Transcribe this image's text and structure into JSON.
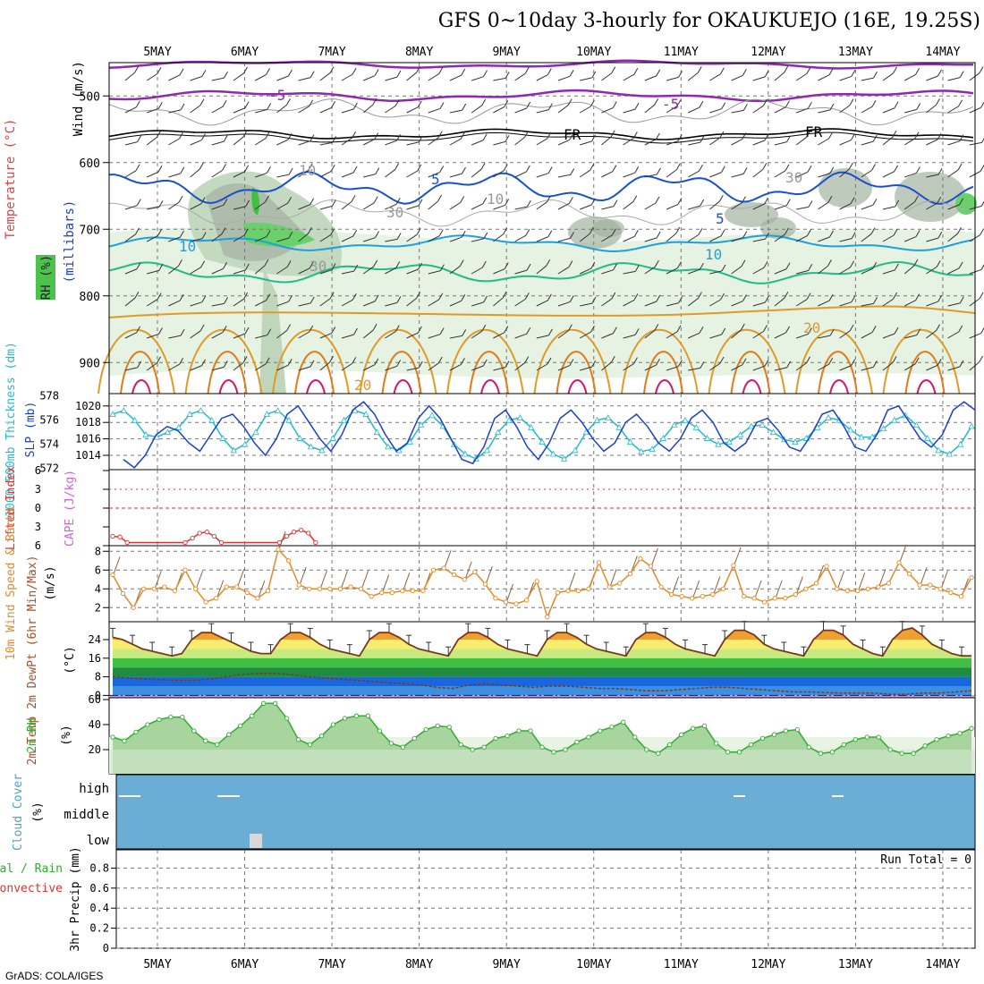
{
  "title": "GFS 0~10day 3-hourly for OKAUKUEJO (16E, 19.25S)",
  "footer": "GrADS: COLA/IGES",
  "colors": {
    "barb": "#333333",
    "freezing": "#000000",
    "cape": "#cc66cc",
    "lifted": "#dd3333",
    "thick": "#22bbcc",
    "slp": "#1a3fd0",
    "wind": "#e08a2a",
    "rh": "#33aa33",
    "cloud": "#6aaed6"
  },
  "days": [
    "5MAY",
    "6MAY",
    "7MAY",
    "8MAY",
    "9MAY",
    "10MAY",
    "11MAY",
    "12MAY",
    "13MAY",
    "14MAY"
  ],
  "panels": {
    "upper": {
      "ylabel_wind": "Wind (m/s)",
      "ylabel_temp": "Temperature (°C)",
      "ylabel_rh": "RH (%)",
      "ylabel_mb": "(millibars)",
      "levels": [
        "500",
        "600",
        "700",
        "800",
        "900"
      ],
      "contour_labels": [
        "-5",
        "-5",
        "FR",
        "FR",
        "5",
        "5",
        "10",
        "10",
        "20",
        "20",
        "10",
        "10",
        "30",
        "30",
        "30"
      ]
    },
    "slp": {
      "ylabel_thick": "1000-500mb Thickness (dm)",
      "ylabel_slp": "SLP (mb)",
      "left_ticks": [
        "578",
        "576",
        "574",
        "572"
      ],
      "right_ticks": [
        "1020",
        "1018",
        "1016",
        "1014"
      ]
    },
    "cape": {
      "ylabel_li": "Lifted Index",
      "ylabel_cape": "CAPE (J/kg)",
      "ticks": [
        "6",
        "3",
        "0",
        "3",
        "6"
      ]
    },
    "wind": {
      "ylabel": "10m Wind Speed & Barbs",
      "unit": "(m/s)",
      "ticks": [
        "8",
        "6",
        "4",
        "2"
      ]
    },
    "temp": {
      "ylabel": "2m Temp 2m DewPt (6hr Min/Max)",
      "unit": "(°C)",
      "ticks": [
        "24",
        "16",
        "8",
        "0"
      ]
    },
    "rh": {
      "ylabel": "2m RH",
      "unit": "(%)",
      "ticks": [
        "60",
        "40",
        "20"
      ]
    },
    "cloud": {
      "ylabel": "Cloud Cover",
      "unit": "(%)",
      "levels": [
        "high",
        "middle",
        "low"
      ]
    },
    "precip": {
      "ylabel": "Total / Rain Convective",
      "ylabel2": "3hr Precip (mm)",
      "run_total": "Run Total = 0",
      "ticks": [
        "0.8",
        "0.6",
        "0.4",
        "0.2",
        "0"
      ]
    }
  },
  "chart_data": [
    {
      "type": "line",
      "title": "1000-500mb Thickness / SLP",
      "x_unit": "3-hourly steps from 4 MAY 12Z",
      "series": [
        {
          "name": "Thickness (dm)",
          "values": [
            576.5,
            576.8,
            576,
            574.8,
            574.6,
            575,
            575.4,
            576.5,
            576.8,
            576,
            574.5,
            573.5,
            574,
            575,
            576.5,
            576.8,
            576,
            574.5,
            573.8,
            573.5,
            574.5,
            576,
            576.8,
            576.5,
            575,
            573.8,
            573.5,
            574.2,
            575.6,
            576.4,
            575.5,
            574,
            573.2,
            572.8,
            573.5,
            575,
            576,
            576.2,
            575.4,
            574.2,
            573.2,
            572.8,
            573.5,
            575,
            576,
            576.2,
            575.4,
            574.2,
            573.4,
            573.6,
            574.5,
            575.6,
            576,
            575.4,
            574.5,
            574,
            574.2,
            574.8,
            575.5,
            575.6,
            575,
            574.4,
            574.2,
            574.5,
            575.4,
            576.2,
            576,
            575.2,
            574.6,
            574.6,
            575.3,
            576,
            576.4,
            575.6,
            574.5,
            573.5,
            573.2,
            574,
            575.5
          ]
        },
        {
          "name": "SLP (mb)",
          "values": [
            1013.5,
            1012.5,
            1014,
            1016.5,
            1017.5,
            1017,
            1015.5,
            1014.5,
            1016.5,
            1018.5,
            1019,
            1017.5,
            1015.5,
            1014,
            1016,
            1019,
            1020,
            1018,
            1016,
            1014.5,
            1016.5,
            1019.5,
            1020.5,
            1019,
            1016.5,
            1014.5,
            1015.5,
            1018.5,
            1020,
            1018.5,
            1016,
            1013.5,
            1013,
            1015,
            1018.5,
            1019.5,
            1017.5,
            1015,
            1013.5,
            1015.5,
            1018.5,
            1019.5,
            1018,
            1016,
            1014.5,
            1015.5,
            1018,
            1019,
            1017.5,
            1015.5,
            1014.5,
            1016,
            1018.5,
            1019.5,
            1018,
            1015.5,
            1014.5,
            1015.5,
            1018,
            1018.5,
            1017,
            1015,
            1014.5,
            1016.5,
            1019,
            1019.5,
            1017.5,
            1015,
            1014.5,
            1016.5,
            1019.5,
            1020,
            1018,
            1016,
            1015,
            1016.5,
            1019.5,
            1020.5,
            1019.5
          ]
        }
      ]
    },
    {
      "type": "line",
      "title": "Lifted Index",
      "series": [
        {
          "name": "Lifted Index",
          "values": [
            4.5,
            4.6,
            5.5,
            null,
            null,
            null,
            null,
            null,
            null,
            null,
            5.5,
            4.8,
            4,
            3.8,
            4.5,
            5.5,
            null,
            null,
            null,
            null,
            null,
            null,
            null,
            5.5,
            4.5,
            3.8,
            3.5,
            4,
            5.5
          ]
        }
      ]
    },
    {
      "type": "line",
      "title": "10m Wind Speed (m/s)",
      "series": [
        {
          "name": "10m Wind Speed",
          "values": [
            5.5,
            3.5,
            2,
            4,
            4,
            4.2,
            3.8,
            6,
            4,
            2.6,
            3,
            4.2,
            4.2,
            3.6,
            3,
            3.8,
            8.2,
            7,
            4.4,
            4,
            4,
            4,
            4,
            4.2,
            4,
            3.2,
            3.6,
            3.6,
            3.8,
            3.8,
            3.8,
            6,
            6.2,
            5.5,
            5,
            5.8,
            4.5,
            3,
            2.6,
            2.4,
            2.8,
            4.8,
            1,
            3.6,
            3.8,
            3.8,
            4,
            6.8,
            4.2,
            4.6,
            5.6,
            7.2,
            6.4,
            4.2,
            3.4,
            3.2,
            3,
            3.2,
            3.4,
            4,
            6.5,
            3.2,
            3,
            2.6,
            3,
            3,
            3.4,
            4,
            4.6,
            6.4,
            4,
            3.8,
            3.8,
            4,
            4.2,
            4.6,
            6.8,
            5.6,
            4.4,
            4.4,
            4,
            3.6,
            3.2,
            5.2
          ]
        }
      ]
    },
    {
      "type": "area",
      "title": "2m Temp / 2m DewPt (°C)",
      "series": [
        {
          "name": "2m Temp",
          "values": [
            25,
            24,
            22,
            20,
            19,
            18,
            17,
            18,
            24,
            27,
            27,
            25,
            23,
            21,
            19,
            18,
            18,
            24,
            27,
            27,
            25,
            22,
            20,
            19,
            18,
            17,
            24,
            27,
            27,
            25,
            22,
            20,
            19,
            18,
            17,
            24,
            27,
            27,
            25,
            22,
            20,
            19,
            18,
            17,
            24,
            27,
            27,
            25,
            22,
            20,
            19,
            18,
            17,
            24,
            27,
            27,
            25,
            22,
            20,
            19,
            18,
            17,
            24,
            28,
            28,
            26,
            22,
            20,
            19,
            18,
            17,
            24,
            28,
            28,
            26,
            22,
            20,
            18,
            17,
            24,
            28,
            29,
            26,
            22,
            20,
            18,
            17,
            17
          ]
        },
        {
          "name": "2m DewPt",
          "values": [
            8,
            7.5,
            7,
            6.8,
            6.5,
            6.5,
            7,
            8,
            9,
            9.5,
            9.5,
            9,
            8,
            7.5,
            7,
            6.5,
            6,
            5.5,
            5,
            4.5,
            3.5,
            3,
            4.5,
            5,
            4.5,
            4,
            3.5,
            4,
            4,
            3.5,
            3,
            3,
            2.5,
            2,
            2,
            2.5,
            3,
            3.5,
            3.5,
            3,
            2.5,
            2,
            1.5,
            1.5,
            1.2,
            1,
            1,
            1,
            0.5,
            0.5,
            1,
            1,
            1.5,
            2
          ]
        }
      ]
    },
    {
      "type": "area",
      "title": "2m RH (%)",
      "series": [
        {
          "name": "2m RH",
          "values": [
            30,
            27,
            34,
            40,
            44,
            46,
            46,
            35,
            27,
            24,
            32,
            39,
            47,
            57,
            57,
            45,
            28,
            24,
            31,
            40,
            45,
            47,
            47,
            35,
            25,
            22,
            29,
            36,
            39,
            38,
            24,
            20,
            22,
            29,
            31,
            35,
            35,
            22,
            18,
            20,
            26,
            30,
            35,
            38,
            42,
            30,
            20,
            17,
            24,
            32,
            37,
            39,
            25,
            18,
            18,
            24,
            29,
            32,
            35,
            36,
            22,
            17,
            18,
            24,
            28,
            30,
            30,
            20,
            17,
            17,
            23,
            28,
            31,
            33,
            37
          ]
        }
      ]
    },
    {
      "type": "bar",
      "title": "3hr Precip (mm)",
      "ylim": [
        0,
        0.9
      ],
      "values": [
        0
      ]
    }
  ]
}
